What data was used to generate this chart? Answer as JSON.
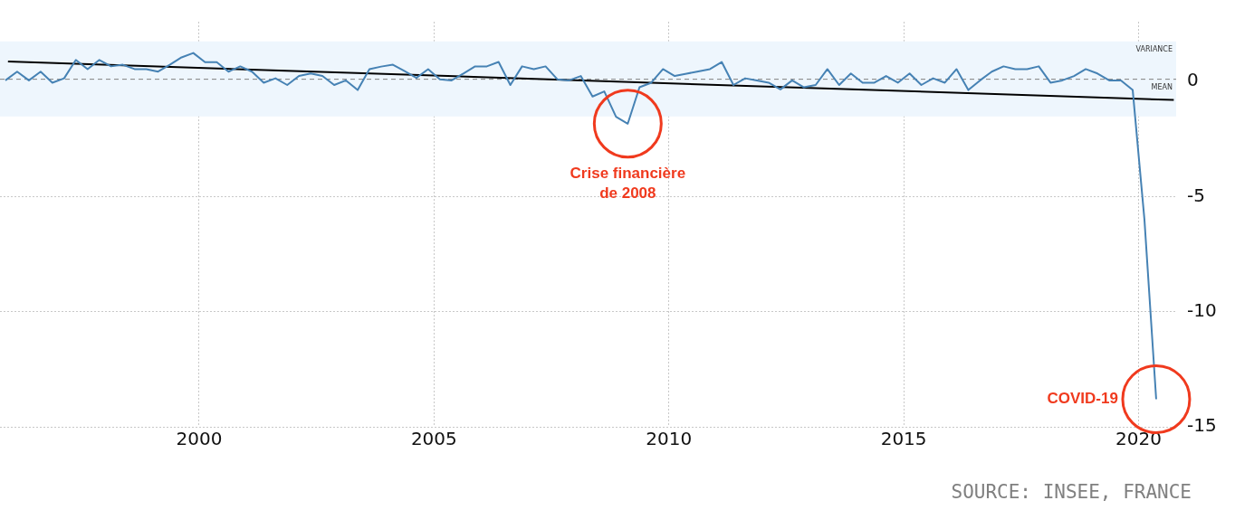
{
  "chart_data": {
    "type": "line",
    "x": [
      1995.875,
      1996.125,
      1996.375,
      1996.625,
      1996.875,
      1997.125,
      1997.375,
      1997.625,
      1997.875,
      1998.125,
      1998.375,
      1998.625,
      1998.875,
      1999.125,
      1999.375,
      1999.625,
      1999.875,
      2000.125,
      2000.375,
      2000.625,
      2000.875,
      2001.125,
      2001.375,
      2001.625,
      2001.875,
      2002.125,
      2002.375,
      2002.625,
      2002.875,
      2003.125,
      2003.375,
      2003.625,
      2003.875,
      2004.125,
      2004.375,
      2004.625,
      2004.875,
      2005.125,
      2005.375,
      2005.625,
      2005.875,
      2006.125,
      2006.375,
      2006.625,
      2006.875,
      2007.125,
      2007.375,
      2007.625,
      2007.875,
      2008.125,
      2008.375,
      2008.625,
      2008.875,
      2009.125,
      2009.375,
      2009.625,
      2009.875,
      2010.125,
      2010.375,
      2010.625,
      2010.875,
      2011.125,
      2011.375,
      2011.625,
      2011.875,
      2012.125,
      2012.375,
      2012.625,
      2012.875,
      2013.125,
      2013.375,
      2013.625,
      2013.875,
      2014.125,
      2014.375,
      2014.625,
      2014.875,
      2015.125,
      2015.375,
      2015.625,
      2015.875,
      2016.125,
      2016.375,
      2016.625,
      2016.875,
      2017.125,
      2017.375,
      2017.625,
      2017.875,
      2018.125,
      2018.375,
      2018.625,
      2018.875,
      2019.125,
      2019.375,
      2019.625,
      2019.875,
      2020.125,
      2020.375
    ],
    "series": [
      {
        "color": "#4682b4",
        "values": [
          0.05,
          0.43,
          0.05,
          0.43,
          -0.05,
          0.14,
          0.94,
          0.54,
          0.94,
          0.66,
          0.73,
          0.54,
          0.54,
          0.43,
          0.73,
          1.05,
          1.24,
          0.84,
          0.84,
          0.43,
          0.66,
          0.43,
          -0.05,
          0.14,
          -0.15,
          0.24,
          0.35,
          0.24,
          -0.15,
          0.05,
          -0.37,
          0.54,
          0.65,
          0.73,
          0.45,
          0.16,
          0.54,
          0.1,
          0.05,
          0.35,
          0.66,
          0.66,
          0.85,
          -0.15,
          0.66,
          0.54,
          0.66,
          0.1,
          0.05,
          0.24,
          -0.65,
          -0.43,
          -1.53,
          -1.83,
          -0.25,
          -0.05,
          0.54,
          0.24,
          0.34,
          0.44,
          0.54,
          0.85,
          -0.15,
          0.14,
          0.05,
          -0.05,
          -0.34,
          0.05,
          -0.25,
          -0.15,
          0.54,
          -0.15,
          0.35,
          -0.05,
          -0.05,
          0.24,
          -0.05,
          0.35,
          -0.15,
          0.14,
          -0.05,
          0.54,
          -0.37,
          0.05,
          0.43,
          0.66,
          0.54,
          0.54,
          0.66,
          -0.05,
          0.05,
          0.24,
          0.54,
          0.35,
          0.05,
          0.05,
          -0.37,
          -6.0,
          -13.8
        ]
      },
      {
        "type": "line",
        "color": "#000000",
        "x": [
          1995.93,
          2020.75
        ],
        "values": [
          0.87,
          -0.8
        ]
      }
    ],
    "xlim": [
      1995.76,
      2020.8
    ],
    "xticks": [
      2000,
      2005,
      2010,
      2015,
      2020
    ],
    "ylim": [
      -15,
      2.6
    ],
    "yticks": [
      0,
      -5,
      -10,
      -15
    ],
    "grid": true,
    "legend": false,
    "marker": "none",
    "line_style": "solid",
    "ref_lines": [
      {
        "axis": "y",
        "value": 0.1,
        "label": "MEAN",
        "color": "#808080",
        "line_style": "dashed"
      }
    ],
    "bands": [
      {
        "axis": "y",
        "from": -1.52,
        "to": 1.75,
        "label": "VARIANCE",
        "color": "#eef6fd"
      }
    ],
    "annotations": [
      {
        "text": "Crise financière\nde 2008",
        "x": 2009.125,
        "y": -1.83
      },
      {
        "text": "COVID-19",
        "x": 2020.375,
        "y": -13.8
      },
      "SOURCE: INSEE, FRANCE"
    ]
  }
}
